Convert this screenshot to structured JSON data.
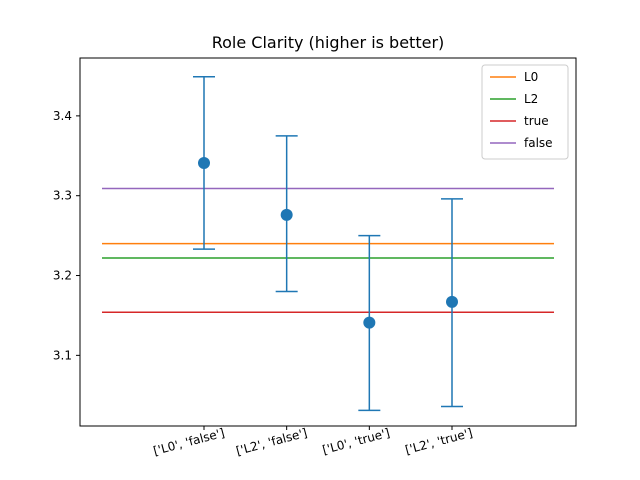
{
  "chart_data": {
    "type": "scatter",
    "title": "Role Clarity (higher is better)",
    "xlabel": "",
    "ylabel": "",
    "categories": [
      "['L0', 'false']",
      "['L2', 'false']",
      "['L0', 'true']",
      "['L2', 'true']"
    ],
    "points": [
      {
        "mean": 3.341,
        "lower": 3.233,
        "upper": 3.449
      },
      {
        "mean": 3.276,
        "lower": 3.18,
        "upper": 3.375
      },
      {
        "mean": 3.141,
        "lower": 3.031,
        "upper": 3.25
      },
      {
        "mean": 3.167,
        "lower": 3.036,
        "upper": 3.296
      }
    ],
    "point_color": "#1f77b4",
    "reference_lines": [
      {
        "name": "L0",
        "value": 3.24,
        "color": "#ff7f0e"
      },
      {
        "name": "L2",
        "value": 3.222,
        "color": "#2ca02c"
      },
      {
        "name": "true",
        "value": 3.154,
        "color": "#d62728"
      },
      {
        "name": "false",
        "value": 3.309,
        "color": "#9467bd"
      }
    ],
    "yticks": [
      3.1,
      3.2,
      3.3,
      3.4
    ],
    "ytick_labels": [
      "3.1",
      "3.2",
      "3.3",
      "3.4"
    ],
    "ylim": [
      3.0115,
      3.4725
    ],
    "grid": false,
    "legend_position": "top-right"
  }
}
